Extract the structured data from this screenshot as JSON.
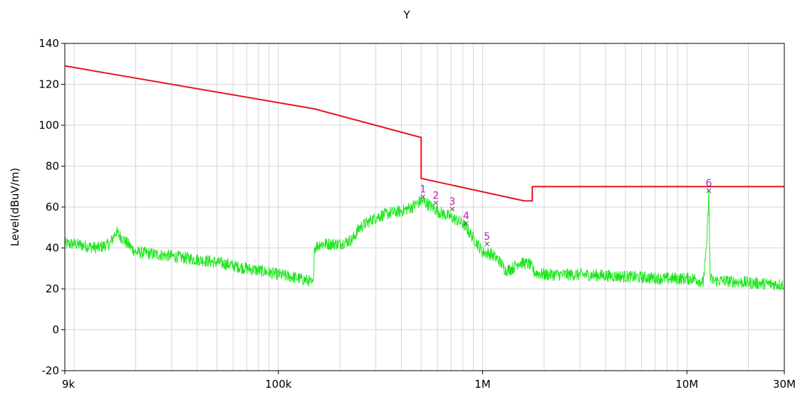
{
  "chart_data": {
    "type": "line",
    "title": "Y",
    "xlabel": "",
    "ylabel": "Level(dBuV/m)",
    "x_scale": "log",
    "xlim": [
      9000,
      30000000
    ],
    "ylim": [
      -20,
      140
    ],
    "grid": true,
    "x_ticks": [
      {
        "value": 9000,
        "label": "9k"
      },
      {
        "value": 100000,
        "label": "100k"
      },
      {
        "value": 1000000,
        "label": "1M"
      },
      {
        "value": 10000000,
        "label": "10M"
      },
      {
        "value": 30000000,
        "label": "30M"
      }
    ],
    "y_ticks": [
      -20,
      0,
      20,
      40,
      60,
      80,
      100,
      120,
      140
    ],
    "series": [
      {
        "color": "#e8141c",
        "x": [
          9000,
          150000,
          500000,
          500000,
          1600000,
          1600000,
          1750000,
          1750000,
          30000000
        ],
        "y": [
          129,
          108,
          94,
          74,
          63,
          63,
          63,
          70,
          70
        ]
      },
      {
        "color": "#1ee61e",
        "x": [
          9000,
          10000,
          13000,
          15000,
          16000,
          20000,
          30000,
          50000,
          70000,
          90000,
          100000,
          115000,
          140000,
          148000,
          150000,
          160000,
          200000,
          230000,
          250000,
          300000,
          350000,
          400000,
          450000,
          500000,
          530000,
          600000,
          700000,
          800000,
          900000,
          1000000,
          1100000,
          1200000,
          1300000,
          1400000,
          1500000,
          1700000,
          1800000,
          2000000,
          3000000,
          5000000,
          8000000,
          11000000,
          12000000,
          12500000,
          12800000,
          13000000,
          13500000,
          15000000,
          20000000,
          30000000
        ],
        "y": [
          42,
          42,
          40,
          42,
          48,
          38,
          36,
          33,
          30,
          28,
          27,
          26,
          24,
          22,
          40,
          42,
          42,
          44,
          50,
          55,
          57,
          58,
          60,
          63,
          62,
          58,
          55,
          52,
          45,
          38,
          37,
          34,
          29,
          30,
          33,
          32,
          28,
          27,
          27,
          26,
          25,
          25,
          23,
          40,
          68,
          25,
          24,
          24,
          23,
          22
        ],
        "noise_band": 3
      }
    ],
    "markers": [
      {
        "label": "1",
        "x": 510000,
        "y": 65
      },
      {
        "label": "2",
        "x": 590000,
        "y": 62
      },
      {
        "label": "3",
        "x": 710000,
        "y": 59
      },
      {
        "label": "4",
        "x": 830000,
        "y": 52
      },
      {
        "label": "5",
        "x": 1050000,
        "y": 42
      },
      {
        "label": "6",
        "x": 12800000,
        "y": 68
      }
    ],
    "marker_color": "#b020c0"
  }
}
